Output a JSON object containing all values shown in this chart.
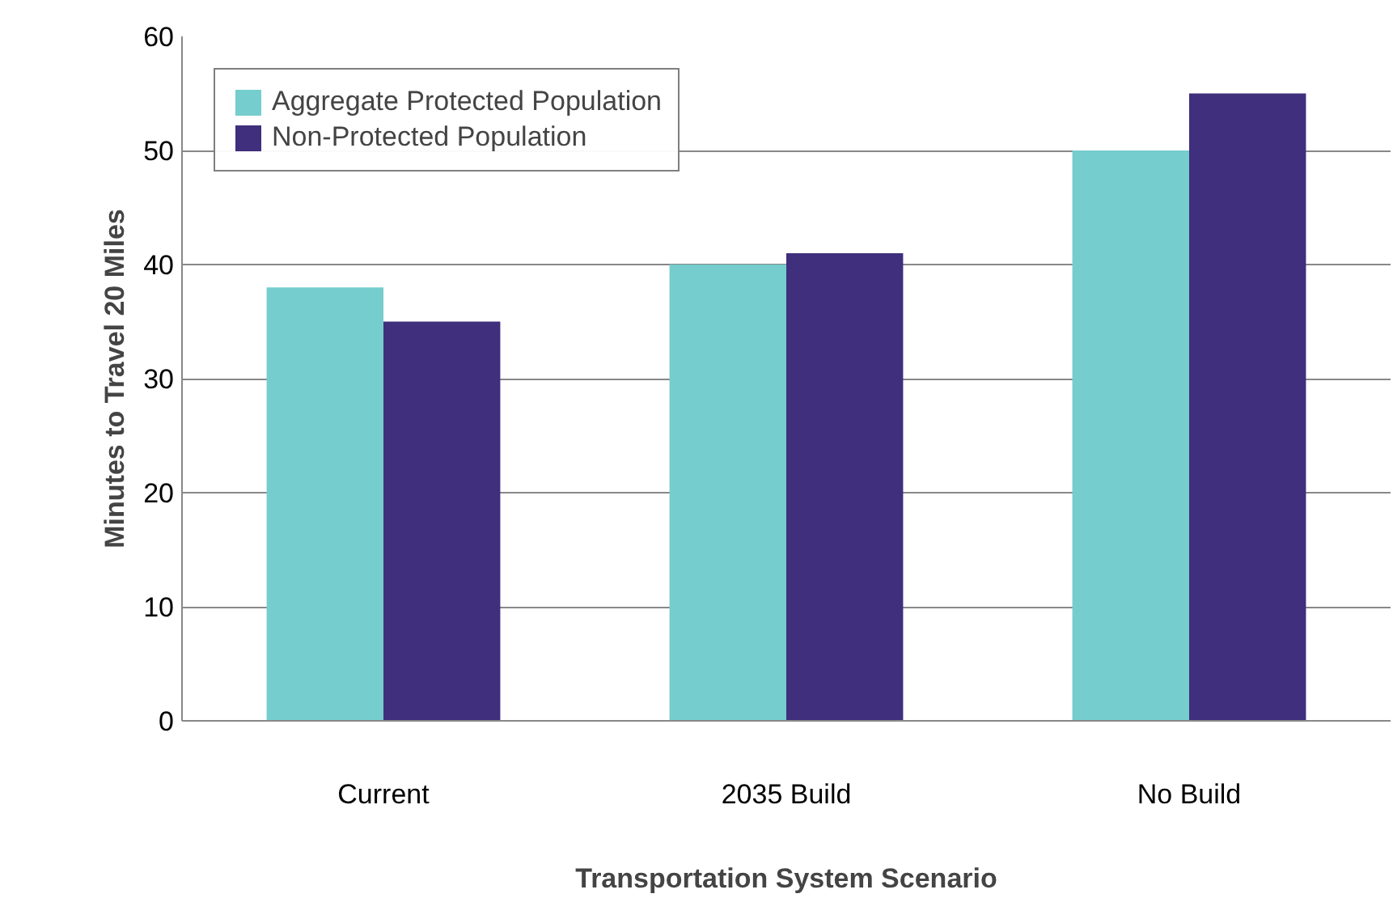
{
  "chart_data": {
    "type": "bar",
    "xlabel": "Transportation System Scenario",
    "ylabel": "Minutes to Travel 20 Miles",
    "categories": [
      "Current",
      "2035 Build",
      "No Build"
    ],
    "series": [
      {
        "name": "Aggregate Protected Population",
        "color": "#76cdcd",
        "values": [
          38,
          40,
          50
        ]
      },
      {
        "name": "Non-Protected Population",
        "color": "#3f2f7c",
        "values": [
          35,
          41,
          55
        ]
      }
    ],
    "ylim": [
      0,
      60
    ],
    "yticks": [
      0,
      10,
      20,
      30,
      40,
      50,
      60
    ],
    "grid": "y",
    "legend": "top left"
  }
}
